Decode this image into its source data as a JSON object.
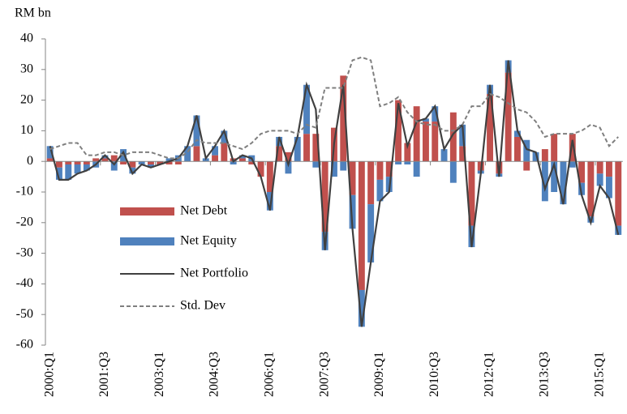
{
  "chart_data": {
    "type": "bar",
    "y_label": "RM bn",
    "ylim": [
      -60,
      40
    ],
    "yticks": [
      -60,
      -50,
      -40,
      -30,
      -20,
      -10,
      0,
      10,
      20,
      30,
      40
    ],
    "categories": [
      "2000:Q1",
      null,
      null,
      null,
      null,
      null,
      "2001:Q3",
      null,
      null,
      null,
      null,
      null,
      "2003:Q1",
      null,
      null,
      null,
      null,
      null,
      "2004:Q3",
      null,
      null,
      null,
      null,
      null,
      "2006:Q1",
      null,
      null,
      null,
      null,
      null,
      "2007:Q3",
      null,
      null,
      null,
      null,
      null,
      "2009:Q1",
      null,
      null,
      null,
      null,
      null,
      "2010:Q3",
      null,
      null,
      null,
      null,
      null,
      "2012:Q1",
      null,
      null,
      null,
      null,
      null,
      "2013:Q3",
      null,
      null,
      null,
      null,
      null,
      "2015:Q1",
      null,
      null
    ],
    "series": [
      {
        "name": "Net Debt",
        "kind": "bar",
        "color": "#c0504d",
        "values": [
          1,
          -2,
          -1,
          -1,
          -1,
          1,
          1,
          2,
          -1,
          -2,
          0,
          -1,
          -1,
          -1,
          -1,
          0,
          5,
          0,
          2,
          6,
          1,
          1,
          -1,
          -5,
          -10,
          5,
          3,
          0,
          9,
          9,
          -23,
          11,
          28,
          -11,
          -42,
          -14,
          -6,
          -5,
          20,
          6,
          18,
          13,
          13,
          0,
          16,
          5,
          -21,
          -3,
          22,
          -4,
          29,
          8,
          -3,
          0,
          4,
          9,
          0,
          9,
          -7,
          -18,
          -4,
          -5,
          -21
        ]
      },
      {
        "name": "Net Equity",
        "kind": "bar",
        "color": "#4f81bd",
        "values": [
          4,
          -4,
          -5,
          -3,
          -2,
          -2,
          1,
          -3,
          4,
          -2,
          -1,
          -1,
          0,
          1,
          2,
          5,
          10,
          1,
          3,
          4,
          -1,
          1,
          2,
          0,
          -6,
          3,
          -4,
          8,
          16,
          -2,
          -6,
          -5,
          -3,
          -11,
          -12,
          -19,
          -7,
          -5,
          -1,
          -1,
          -5,
          1,
          5,
          4,
          -7,
          7,
          -7,
          -1,
          3,
          -1,
          4,
          2,
          7,
          3,
          -13,
          -10,
          -14,
          -2,
          -4,
          -2,
          -4,
          -7,
          -3
        ]
      },
      {
        "name": "Net Portfolio",
        "kind": "line",
        "color": "#404040",
        "values": [
          5,
          -6,
          -6,
          -4,
          -3,
          -1,
          2,
          -1,
          3,
          -4,
          -1,
          -2,
          -1,
          0,
          1,
          5,
          15,
          1,
          5,
          10,
          0,
          2,
          1,
          -5,
          -16,
          8,
          -1,
          8,
          25,
          17,
          -29,
          6,
          25,
          -22,
          -54,
          -33,
          -13,
          -10,
          19,
          5,
          13,
          14,
          18,
          4,
          9,
          12,
          -28,
          -4,
          25,
          -5,
          33,
          10,
          4,
          3,
          -9,
          -1,
          -14,
          7,
          -11,
          -20,
          -8,
          -12,
          -24
        ]
      },
      {
        "name": "Std. Dev",
        "kind": "line",
        "dashed": true,
        "color": "#7f7f7f",
        "values": [
          4,
          5,
          6,
          6,
          2,
          2,
          3,
          3,
          2,
          3,
          3,
          3,
          2,
          1,
          1,
          3,
          7,
          6,
          6,
          6,
          5,
          4,
          6,
          9,
          10,
          10,
          10,
          9,
          12,
          11,
          24,
          24,
          24,
          33,
          34,
          33,
          18,
          19,
          21,
          16,
          13,
          12,
          12,
          10,
          10,
          12,
          18,
          18,
          22,
          21,
          19,
          17,
          16,
          13,
          8,
          9,
          9,
          9,
          10,
          12,
          11,
          5,
          8
        ]
      }
    ]
  }
}
